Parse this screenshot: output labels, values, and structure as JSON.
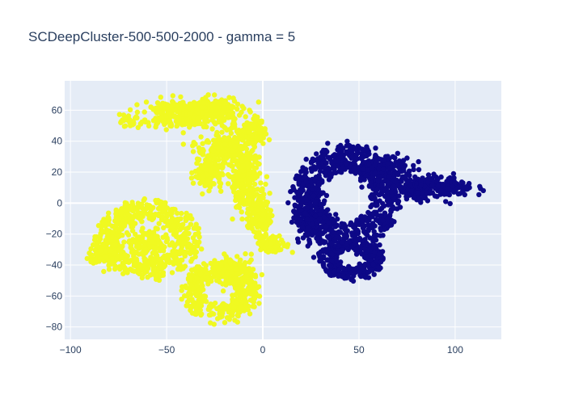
{
  "chart_data": {
    "type": "scatter",
    "title": "SCDeepCluster-500-500-2000 - gamma = 5",
    "xlabel": "",
    "ylabel": "",
    "xlim": [
      -103,
      124
    ],
    "ylim": [
      -88,
      79
    ],
    "x_ticks": [
      -100,
      -50,
      0,
      50,
      100
    ],
    "y_ticks": [
      -80,
      -60,
      -40,
      -20,
      0,
      20,
      40,
      60
    ],
    "x_tick_labels": [
      "−100",
      "−50",
      "0",
      "50",
      "100"
    ],
    "y_tick_labels": [
      "−80",
      "−60",
      "−40",
      "−20",
      "0",
      "20",
      "40",
      "60"
    ],
    "grid": true,
    "legend": "none",
    "colors": {
      "plot_bg": "#e5ecf6",
      "grid": "#ffffff",
      "cluster_0": "#0d0887",
      "cluster_1": "#f0f921",
      "text": "#2a3f5f"
    },
    "series": [
      {
        "color": "#f0f921",
        "regions": [
          {
            "shape": "ring",
            "cx": -60,
            "cy": -24,
            "rx": 28,
            "ry": 25,
            "thickness": 0.45,
            "n": 520
          },
          {
            "shape": "blob",
            "cx": -60,
            "cy": -26,
            "rx": 14,
            "ry": 10,
            "n": 140
          },
          {
            "shape": "blob",
            "cx": -83,
            "cy": -33,
            "rx": 7,
            "ry": 6,
            "n": 60
          },
          {
            "shape": "ring",
            "cx": -22,
            "cy": -57,
            "rx": 20,
            "ry": 20,
            "thickness": 0.55,
            "n": 420
          },
          {
            "shape": "blob",
            "cx": -14,
            "cy": -45,
            "rx": 10,
            "ry": 9,
            "n": 110
          },
          {
            "shape": "blob",
            "cx": -42,
            "cy": 58,
            "rx": 18,
            "ry": 8,
            "n": 260
          },
          {
            "shape": "blob",
            "cx": -24,
            "cy": 60,
            "rx": 12,
            "ry": 8,
            "n": 160
          },
          {
            "shape": "blob",
            "cx": -68,
            "cy": 52,
            "rx": 5,
            "ry": 3,
            "n": 30
          },
          {
            "shape": "blob",
            "cx": -18,
            "cy": 36,
            "rx": 14,
            "ry": 10,
            "n": 220
          },
          {
            "shape": "blob",
            "cx": -10,
            "cy": 14,
            "rx": 8,
            "ry": 16,
            "n": 230
          },
          {
            "shape": "blob",
            "cx": -2,
            "cy": -8,
            "rx": 5,
            "ry": 12,
            "n": 130
          },
          {
            "shape": "blob",
            "cx": -28,
            "cy": 20,
            "rx": 7,
            "ry": 10,
            "n": 110
          },
          {
            "shape": "blob",
            "cx": -6,
            "cy": 48,
            "rx": 7,
            "ry": 8,
            "n": 70
          },
          {
            "shape": "blob",
            "cx": 5,
            "cy": -27,
            "rx": 8,
            "ry": 5,
            "n": 70
          }
        ]
      },
      {
        "color": "#0d0887",
        "regions": [
          {
            "shape": "ring",
            "cx": 43,
            "cy": 4,
            "rx": 28,
            "ry": 34,
            "thickness": 0.5,
            "n": 700
          },
          {
            "shape": "blob",
            "cx": 26,
            "cy": -8,
            "rx": 9,
            "ry": 16,
            "n": 180
          },
          {
            "shape": "blob",
            "cx": 62,
            "cy": 22,
            "rx": 14,
            "ry": 10,
            "n": 140
          },
          {
            "shape": "blob",
            "cx": 92,
            "cy": 10,
            "rx": 16,
            "ry": 6,
            "n": 200
          },
          {
            "shape": "blob",
            "cx": 78,
            "cy": 8,
            "rx": 8,
            "ry": 7,
            "n": 70
          },
          {
            "shape": "ring",
            "cx": 46,
            "cy": -36,
            "rx": 17,
            "ry": 13,
            "thickness": 0.55,
            "n": 320
          }
        ]
      }
    ]
  }
}
